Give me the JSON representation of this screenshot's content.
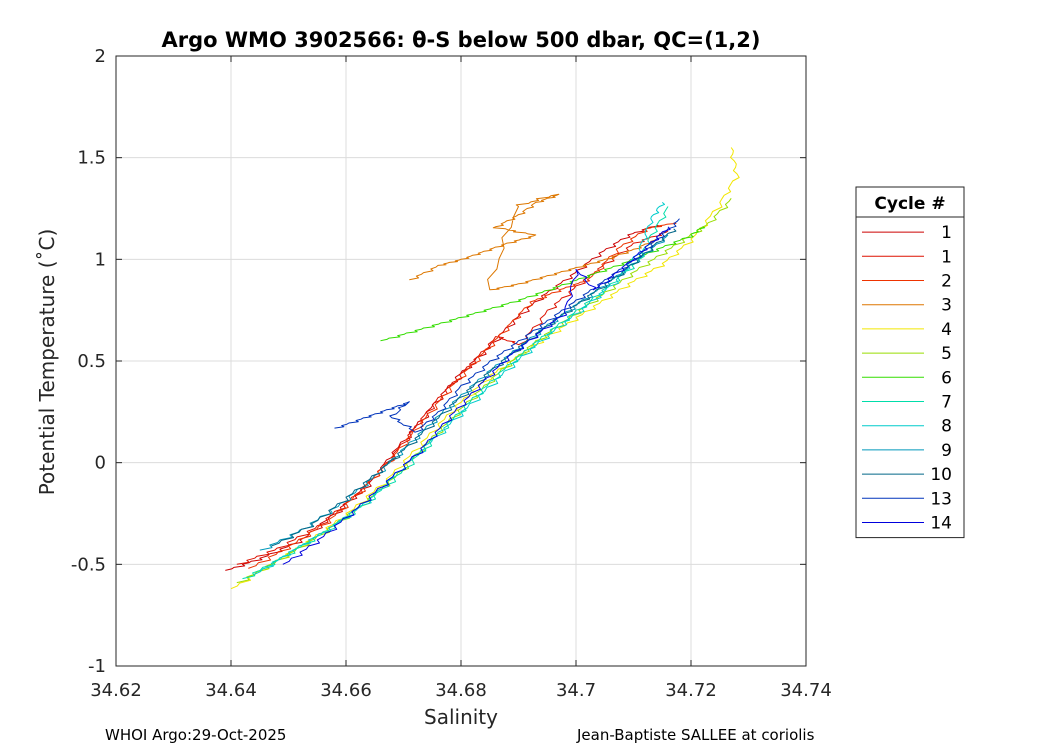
{
  "chart_data": {
    "type": "line",
    "title": "Argo WMO 3902566: θ-S below 500 dbar,  QC=(1,2)",
    "xlabel": "Salinity",
    "ylabel": "Potential Temperature (˚C)",
    "xlim": [
      34.62,
      34.74
    ],
    "ylim": [
      -1,
      2
    ],
    "xticks": [
      "34.62",
      "34.64",
      "34.66",
      "34.68",
      "34.7",
      "34.72",
      "34.74"
    ],
    "yticks": [
      "-1",
      "-0.5",
      "0",
      "0.5",
      "1",
      "1.5",
      "2"
    ],
    "grid": true,
    "legend_title": "Cycle #",
    "legend_position": "right",
    "series": [
      {
        "name": "1",
        "color": "#cc0000",
        "points": [
          [
            34.639,
            -0.53
          ],
          [
            34.645,
            -0.47
          ],
          [
            34.652,
            -0.38
          ],
          [
            34.659,
            -0.22
          ],
          [
            34.664,
            -0.1
          ],
          [
            34.668,
            0.05
          ],
          [
            34.674,
            0.25
          ],
          [
            34.679,
            0.42
          ],
          [
            34.684,
            0.55
          ],
          [
            34.689,
            0.7
          ],
          [
            34.694,
            0.82
          ],
          [
            34.699,
            0.92
          ],
          [
            34.704,
            1.03
          ],
          [
            34.709,
            1.12
          ],
          [
            34.714,
            1.17
          ]
        ]
      },
      {
        "name": "1",
        "color": "#dd1100",
        "points": [
          [
            34.641,
            -0.5
          ],
          [
            34.648,
            -0.42
          ],
          [
            34.655,
            -0.31
          ],
          [
            34.661,
            -0.17
          ],
          [
            34.667,
            0.0
          ],
          [
            34.672,
            0.18
          ],
          [
            34.676,
            0.32
          ],
          [
            34.681,
            0.47
          ],
          [
            34.686,
            0.62
          ],
          [
            34.69,
            0.58
          ],
          [
            34.695,
            0.75
          ],
          [
            34.7,
            0.87
          ],
          [
            34.705,
            0.98
          ],
          [
            34.71,
            1.08
          ],
          [
            34.716,
            1.14
          ]
        ]
      },
      {
        "name": "2",
        "color": "#ee3300",
        "points": [
          [
            34.643,
            -0.52
          ],
          [
            34.65,
            -0.41
          ],
          [
            34.657,
            -0.28
          ],
          [
            34.663,
            -0.12
          ],
          [
            34.668,
            0.03
          ],
          [
            34.673,
            0.2
          ],
          [
            34.678,
            0.37
          ],
          [
            34.683,
            0.52
          ],
          [
            34.688,
            0.67
          ],
          [
            34.692,
            0.79
          ],
          [
            34.697,
            0.85
          ],
          [
            34.702,
            0.9
          ],
          [
            34.707,
            1.05
          ],
          [
            34.712,
            1.15
          ],
          [
            34.717,
            1.18
          ]
        ]
      },
      {
        "name": "3",
        "color": "#dd7700",
        "points": [
          [
            34.671,
            0.9
          ],
          [
            34.676,
            0.97
          ],
          [
            34.68,
            1.0
          ],
          [
            34.684,
            1.04
          ],
          [
            34.688,
            1.08
          ],
          [
            34.693,
            1.12
          ],
          [
            34.686,
            1.16
          ],
          [
            34.69,
            1.22
          ],
          [
            34.693,
            1.28
          ],
          [
            34.697,
            1.32
          ],
          [
            34.69,
            1.26
          ],
          [
            34.685,
            0.85
          ],
          [
            34.69,
            0.88
          ],
          [
            34.695,
            0.92
          ],
          [
            34.7,
            0.96
          ],
          [
            34.705,
            1.0
          ],
          [
            34.71,
            1.05
          ],
          [
            34.714,
            1.1
          ]
        ]
      },
      {
        "name": "4",
        "color": "#f2e600",
        "points": [
          [
            34.64,
            -0.62
          ],
          [
            34.646,
            -0.51
          ],
          [
            34.653,
            -0.39
          ],
          [
            34.66,
            -0.25
          ],
          [
            34.667,
            -0.08
          ],
          [
            34.673,
            0.1
          ],
          [
            34.679,
            0.28
          ],
          [
            34.685,
            0.43
          ],
          [
            34.691,
            0.55
          ],
          [
            34.697,
            0.66
          ],
          [
            34.703,
            0.77
          ],
          [
            34.709,
            0.88
          ],
          [
            34.715,
            0.98
          ],
          [
            34.72,
            1.1
          ],
          [
            34.725,
            1.28
          ],
          [
            34.728,
            1.42
          ],
          [
            34.727,
            1.55
          ]
        ]
      },
      {
        "name": "5",
        "color": "#99dd00",
        "points": [
          [
            34.641,
            -0.59
          ],
          [
            34.648,
            -0.48
          ],
          [
            34.655,
            -0.36
          ],
          [
            34.662,
            -0.22
          ],
          [
            34.669,
            -0.05
          ],
          [
            34.675,
            0.13
          ],
          [
            34.681,
            0.3
          ],
          [
            34.687,
            0.46
          ],
          [
            34.693,
            0.6
          ],
          [
            34.699,
            0.72
          ],
          [
            34.705,
            0.84
          ],
          [
            34.711,
            0.96
          ],
          [
            34.717,
            1.07
          ],
          [
            34.723,
            1.18
          ],
          [
            34.727,
            1.3
          ]
        ]
      },
      {
        "name": "6",
        "color": "#33dd00",
        "points": [
          [
            34.666,
            0.6
          ],
          [
            34.672,
            0.65
          ],
          [
            34.678,
            0.7
          ],
          [
            34.684,
            0.75
          ],
          [
            34.69,
            0.8
          ],
          [
            34.696,
            0.86
          ],
          [
            34.702,
            0.92
          ],
          [
            34.708,
            0.98
          ],
          [
            34.714,
            1.05
          ],
          [
            34.72,
            1.12
          ],
          [
            34.722,
            1.16
          ]
        ]
      },
      {
        "name": "7",
        "color": "#00ddaa",
        "points": [
          [
            34.642,
            -0.57
          ],
          [
            34.649,
            -0.46
          ],
          [
            34.656,
            -0.34
          ],
          [
            34.663,
            -0.2
          ],
          [
            34.67,
            -0.03
          ],
          [
            34.676,
            0.15
          ],
          [
            34.682,
            0.32
          ],
          [
            34.688,
            0.48
          ],
          [
            34.694,
            0.62
          ],
          [
            34.7,
            0.75
          ],
          [
            34.706,
            0.88
          ],
          [
            34.711,
            1.0
          ],
          [
            34.713,
            1.12
          ],
          [
            34.716,
            1.26
          ]
        ]
      },
      {
        "name": "8",
        "color": "#00cccc",
        "points": [
          [
            34.644,
            -0.55
          ],
          [
            34.65,
            -0.44
          ],
          [
            34.657,
            -0.32
          ],
          [
            34.664,
            -0.18
          ],
          [
            34.67,
            -0.01
          ],
          [
            34.677,
            0.17
          ],
          [
            34.683,
            0.33
          ],
          [
            34.689,
            0.49
          ],
          [
            34.695,
            0.63
          ],
          [
            34.701,
            0.76
          ],
          [
            34.707,
            0.9
          ],
          [
            34.711,
            1.05
          ],
          [
            34.713,
            1.2
          ],
          [
            34.715,
            1.28
          ]
        ]
      },
      {
        "name": "9",
        "color": "#0099bb",
        "points": [
          [
            34.645,
            -0.43
          ],
          [
            34.652,
            -0.33
          ],
          [
            34.659,
            -0.2
          ],
          [
            34.665,
            -0.06
          ],
          [
            34.671,
            0.1
          ],
          [
            34.677,
            0.26
          ],
          [
            34.683,
            0.41
          ],
          [
            34.689,
            0.55
          ],
          [
            34.695,
            0.68
          ],
          [
            34.701,
            0.8
          ],
          [
            34.707,
            0.92
          ],
          [
            34.712,
            1.03
          ],
          [
            34.716,
            1.12
          ]
        ]
      },
      {
        "name": "10",
        "color": "#006688",
        "points": [
          [
            34.647,
            -0.41
          ],
          [
            34.654,
            -0.3
          ],
          [
            34.66,
            -0.17
          ],
          [
            34.666,
            -0.03
          ],
          [
            34.672,
            0.12
          ],
          [
            34.678,
            0.28
          ],
          [
            34.684,
            0.43
          ],
          [
            34.69,
            0.57
          ],
          [
            34.696,
            0.7
          ],
          [
            34.702,
            0.82
          ],
          [
            34.708,
            0.94
          ],
          [
            34.713,
            1.06
          ],
          [
            34.717,
            1.15
          ]
        ]
      },
      {
        "name": "13",
        "color": "#0033bb",
        "points": [
          [
            34.658,
            0.17
          ],
          [
            34.663,
            0.22
          ],
          [
            34.667,
            0.26
          ],
          [
            34.671,
            0.3
          ],
          [
            34.668,
            0.22
          ],
          [
            34.672,
            0.15
          ],
          [
            34.676,
            0.25
          ],
          [
            34.68,
            0.38
          ],
          [
            34.685,
            0.5
          ],
          [
            34.69,
            0.6
          ],
          [
            34.695,
            0.7
          ],
          [
            34.7,
            0.8
          ],
          [
            34.705,
            0.9
          ],
          [
            34.71,
            1.0
          ],
          [
            34.714,
            1.1
          ],
          [
            34.718,
            1.2
          ]
        ]
      },
      {
        "name": "14",
        "color": "#0000dd",
        "points": [
          [
            34.649,
            -0.5
          ],
          [
            34.655,
            -0.38
          ],
          [
            34.661,
            -0.24
          ],
          [
            34.667,
            -0.09
          ],
          [
            34.673,
            0.07
          ],
          [
            34.678,
            0.23
          ],
          [
            34.683,
            0.38
          ],
          [
            34.688,
            0.52
          ],
          [
            34.693,
            0.63
          ],
          [
            34.698,
            0.74
          ],
          [
            34.7,
            0.95
          ],
          [
            34.703,
            0.85
          ],
          [
            34.708,
            0.96
          ],
          [
            34.712,
            1.06
          ],
          [
            34.716,
            1.16
          ]
        ]
      }
    ]
  },
  "footer": {
    "left": "WHOI Argo:29-Oct-2025",
    "right": "Jean-Baptiste SALLEE at coriolis"
  }
}
